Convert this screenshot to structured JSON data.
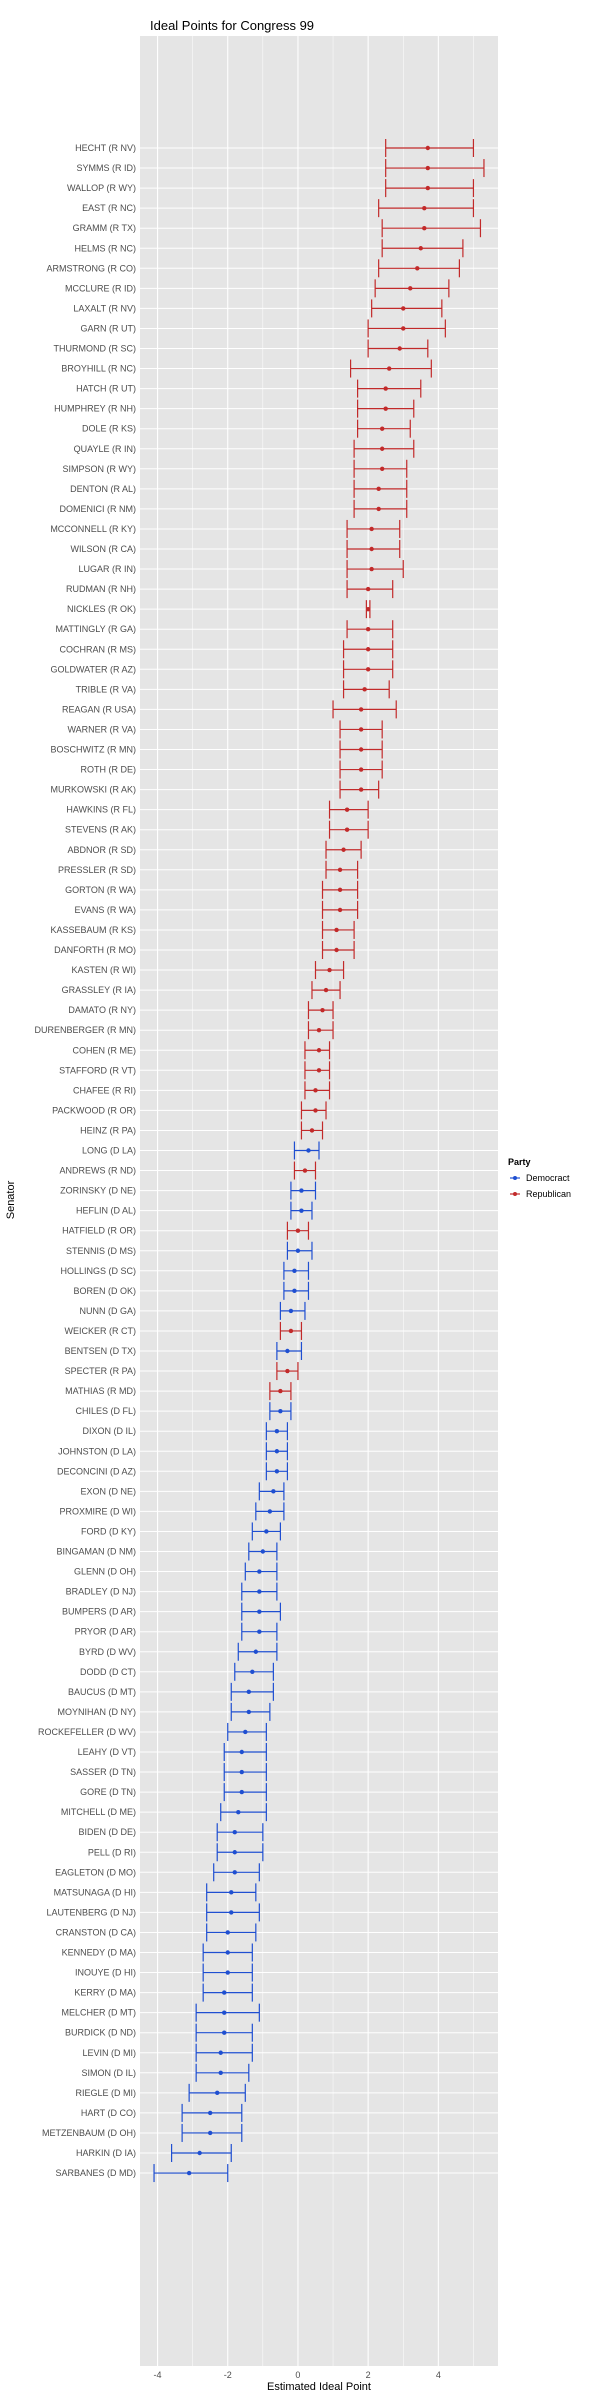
{
  "chart_data": {
    "type": "scatter",
    "title": "Ideal Points for Congress 99",
    "xlabel": "Estimated Ideal Point",
    "ylabel": "Senator",
    "xlim": [
      -4.5,
      5.7
    ],
    "xticks": [
      -4,
      -2,
      0,
      2,
      4
    ],
    "grid": true,
    "legend": {
      "title": "Party",
      "position": "right",
      "entries": [
        {
          "name": "Democract",
          "color": "#1f4fd1"
        },
        {
          "name": "Republican",
          "color": "#c22a2a"
        }
      ]
    },
    "colors": {
      "Democract": "#1f4fd1",
      "Republican": "#c22a2a"
    },
    "senators": [
      {
        "name": "HECHT (R NV)",
        "party": "Republican",
        "x": 3.7,
        "lo": 2.5,
        "hi": 5.0
      },
      {
        "name": "SYMMS (R ID)",
        "party": "Republican",
        "x": 3.7,
        "lo": 2.5,
        "hi": 5.3
      },
      {
        "name": "WALLOP (R WY)",
        "party": "Republican",
        "x": 3.7,
        "lo": 2.5,
        "hi": 5.0
      },
      {
        "name": "EAST (R NC)",
        "party": "Republican",
        "x": 3.6,
        "lo": 2.3,
        "hi": 5.0
      },
      {
        "name": "GRAMM (R TX)",
        "party": "Republican",
        "x": 3.6,
        "lo": 2.4,
        "hi": 5.2
      },
      {
        "name": "HELMS (R NC)",
        "party": "Republican",
        "x": 3.5,
        "lo": 2.4,
        "hi": 4.7
      },
      {
        "name": "ARMSTRONG (R CO)",
        "party": "Republican",
        "x": 3.4,
        "lo": 2.3,
        "hi": 4.6
      },
      {
        "name": "MCCLURE (R ID)",
        "party": "Republican",
        "x": 3.2,
        "lo": 2.2,
        "hi": 4.3
      },
      {
        "name": "LAXALT (R NV)",
        "party": "Republican",
        "x": 3.0,
        "lo": 2.1,
        "hi": 4.1
      },
      {
        "name": "GARN (R UT)",
        "party": "Republican",
        "x": 3.0,
        "lo": 2.0,
        "hi": 4.2
      },
      {
        "name": "THURMOND (R SC)",
        "party": "Republican",
        "x": 2.9,
        "lo": 2.0,
        "hi": 3.7
      },
      {
        "name": "BROYHILL (R NC)",
        "party": "Republican",
        "x": 2.6,
        "lo": 1.5,
        "hi": 3.8
      },
      {
        "name": "HATCH (R UT)",
        "party": "Republican",
        "x": 2.5,
        "lo": 1.7,
        "hi": 3.5
      },
      {
        "name": "HUMPHREY (R NH)",
        "party": "Republican",
        "x": 2.5,
        "lo": 1.7,
        "hi": 3.3
      },
      {
        "name": "DOLE (R KS)",
        "party": "Republican",
        "x": 2.4,
        "lo": 1.7,
        "hi": 3.2
      },
      {
        "name": "QUAYLE (R IN)",
        "party": "Republican",
        "x": 2.4,
        "lo": 1.6,
        "hi": 3.3
      },
      {
        "name": "SIMPSON (R WY)",
        "party": "Republican",
        "x": 2.4,
        "lo": 1.6,
        "hi": 3.1
      },
      {
        "name": "DENTON (R AL)",
        "party": "Republican",
        "x": 2.3,
        "lo": 1.6,
        "hi": 3.1
      },
      {
        "name": "DOMENICI (R NM)",
        "party": "Republican",
        "x": 2.3,
        "lo": 1.6,
        "hi": 3.1
      },
      {
        "name": "MCCONNELL (R KY)",
        "party": "Republican",
        "x": 2.1,
        "lo": 1.4,
        "hi": 2.9
      },
      {
        "name": "WILSON (R CA)",
        "party": "Republican",
        "x": 2.1,
        "lo": 1.4,
        "hi": 2.9
      },
      {
        "name": "LUGAR (R IN)",
        "party": "Republican",
        "x": 2.1,
        "lo": 1.4,
        "hi": 3.0
      },
      {
        "name": "RUDMAN (R NH)",
        "party": "Republican",
        "x": 2.0,
        "lo": 1.4,
        "hi": 2.7
      },
      {
        "name": "NICKLES (R OK)",
        "party": "Republican",
        "x": 2.0,
        "lo": 1.95,
        "hi": 2.05
      },
      {
        "name": "MATTINGLY (R GA)",
        "party": "Republican",
        "x": 2.0,
        "lo": 1.4,
        "hi": 2.7
      },
      {
        "name": "COCHRAN (R MS)",
        "party": "Republican",
        "x": 2.0,
        "lo": 1.3,
        "hi": 2.7
      },
      {
        "name": "GOLDWATER (R AZ)",
        "party": "Republican",
        "x": 2.0,
        "lo": 1.3,
        "hi": 2.7
      },
      {
        "name": "TRIBLE (R VA)",
        "party": "Republican",
        "x": 1.9,
        "lo": 1.3,
        "hi": 2.6
      },
      {
        "name": "REAGAN (R USA)",
        "party": "Republican",
        "x": 1.8,
        "lo": 1.0,
        "hi": 2.8
      },
      {
        "name": "WARNER (R VA)",
        "party": "Republican",
        "x": 1.8,
        "lo": 1.2,
        "hi": 2.4
      },
      {
        "name": "BOSCHWITZ (R MN)",
        "party": "Republican",
        "x": 1.8,
        "lo": 1.2,
        "hi": 2.4
      },
      {
        "name": "ROTH (R DE)",
        "party": "Republican",
        "x": 1.8,
        "lo": 1.2,
        "hi": 2.4
      },
      {
        "name": "MURKOWSKI (R AK)",
        "party": "Republican",
        "x": 1.8,
        "lo": 1.2,
        "hi": 2.3
      },
      {
        "name": "HAWKINS (R FL)",
        "party": "Republican",
        "x": 1.4,
        "lo": 0.9,
        "hi": 2.0
      },
      {
        "name": "STEVENS (R AK)",
        "party": "Republican",
        "x": 1.4,
        "lo": 0.9,
        "hi": 2.0
      },
      {
        "name": "ABDNOR (R SD)",
        "party": "Republican",
        "x": 1.3,
        "lo": 0.8,
        "hi": 1.8
      },
      {
        "name": "PRESSLER (R SD)",
        "party": "Republican",
        "x": 1.2,
        "lo": 0.8,
        "hi": 1.7
      },
      {
        "name": "GORTON (R WA)",
        "party": "Republican",
        "x": 1.2,
        "lo": 0.7,
        "hi": 1.7
      },
      {
        "name": "EVANS (R WA)",
        "party": "Republican",
        "x": 1.2,
        "lo": 0.7,
        "hi": 1.7
      },
      {
        "name": "KASSEBAUM (R KS)",
        "party": "Republican",
        "x": 1.1,
        "lo": 0.7,
        "hi": 1.6
      },
      {
        "name": "DANFORTH (R MO)",
        "party": "Republican",
        "x": 1.1,
        "lo": 0.7,
        "hi": 1.6
      },
      {
        "name": "KASTEN (R WI)",
        "party": "Republican",
        "x": 0.9,
        "lo": 0.5,
        "hi": 1.3
      },
      {
        "name": "GRASSLEY (R IA)",
        "party": "Republican",
        "x": 0.8,
        "lo": 0.4,
        "hi": 1.2
      },
      {
        "name": "DAMATO (R NY)",
        "party": "Republican",
        "x": 0.7,
        "lo": 0.3,
        "hi": 1.0
      },
      {
        "name": "DURENBERGER (R MN)",
        "party": "Republican",
        "x": 0.6,
        "lo": 0.3,
        "hi": 1.0
      },
      {
        "name": "COHEN (R ME)",
        "party": "Republican",
        "x": 0.6,
        "lo": 0.2,
        "hi": 0.9
      },
      {
        "name": "STAFFORD (R VT)",
        "party": "Republican",
        "x": 0.6,
        "lo": 0.2,
        "hi": 0.9
      },
      {
        "name": "CHAFEE (R RI)",
        "party": "Republican",
        "x": 0.5,
        "lo": 0.2,
        "hi": 0.9
      },
      {
        "name": "PACKWOOD (R OR)",
        "party": "Republican",
        "x": 0.5,
        "lo": 0.1,
        "hi": 0.8
      },
      {
        "name": "HEINZ (R PA)",
        "party": "Republican",
        "x": 0.4,
        "lo": 0.1,
        "hi": 0.7
      },
      {
        "name": "LONG (D LA)",
        "party": "Democract",
        "x": 0.3,
        "lo": -0.1,
        "hi": 0.6
      },
      {
        "name": "ANDREWS (R ND)",
        "party": "Republican",
        "x": 0.2,
        "lo": -0.1,
        "hi": 0.5
      },
      {
        "name": "ZORINSKY (D NE)",
        "party": "Democract",
        "x": 0.1,
        "lo": -0.2,
        "hi": 0.5
      },
      {
        "name": "HEFLIN (D AL)",
        "party": "Democract",
        "x": 0.1,
        "lo": -0.2,
        "hi": 0.4
      },
      {
        "name": "HATFIELD (R OR)",
        "party": "Republican",
        "x": 0.0,
        "lo": -0.3,
        "hi": 0.3
      },
      {
        "name": "STENNIS (D MS)",
        "party": "Democract",
        "x": 0.0,
        "lo": -0.3,
        "hi": 0.4
      },
      {
        "name": "HOLLINGS (D SC)",
        "party": "Democract",
        "x": -0.1,
        "lo": -0.4,
        "hi": 0.3
      },
      {
        "name": "BOREN (D OK)",
        "party": "Democract",
        "x": -0.1,
        "lo": -0.4,
        "hi": 0.3
      },
      {
        "name": "NUNN (D GA)",
        "party": "Democract",
        "x": -0.2,
        "lo": -0.5,
        "hi": 0.2
      },
      {
        "name": "WEICKER (R CT)",
        "party": "Republican",
        "x": -0.2,
        "lo": -0.5,
        "hi": 0.1
      },
      {
        "name": "BENTSEN (D TX)",
        "party": "Democract",
        "x": -0.3,
        "lo": -0.6,
        "hi": 0.1
      },
      {
        "name": "SPECTER (R PA)",
        "party": "Republican",
        "x": -0.3,
        "lo": -0.6,
        "hi": 0.0
      },
      {
        "name": "MATHIAS (R MD)",
        "party": "Republican",
        "x": -0.5,
        "lo": -0.8,
        "hi": -0.2
      },
      {
        "name": "CHILES (D FL)",
        "party": "Democract",
        "x": -0.5,
        "lo": -0.8,
        "hi": -0.2
      },
      {
        "name": "DIXON (D IL)",
        "party": "Democract",
        "x": -0.6,
        "lo": -0.9,
        "hi": -0.3
      },
      {
        "name": "JOHNSTON (D LA)",
        "party": "Democract",
        "x": -0.6,
        "lo": -0.9,
        "hi": -0.3
      },
      {
        "name": "DECONCINI (D AZ)",
        "party": "Democract",
        "x": -0.6,
        "lo": -0.9,
        "hi": -0.3
      },
      {
        "name": "EXON (D NE)",
        "party": "Democract",
        "x": -0.7,
        "lo": -1.1,
        "hi": -0.4
      },
      {
        "name": "PROXMIRE (D WI)",
        "party": "Democract",
        "x": -0.8,
        "lo": -1.2,
        "hi": -0.4
      },
      {
        "name": "FORD (D KY)",
        "party": "Democract",
        "x": -0.9,
        "lo": -1.3,
        "hi": -0.5
      },
      {
        "name": "BINGAMAN (D NM)",
        "party": "Democract",
        "x": -1.0,
        "lo": -1.4,
        "hi": -0.6
      },
      {
        "name": "GLENN (D OH)",
        "party": "Democract",
        "x": -1.1,
        "lo": -1.5,
        "hi": -0.6
      },
      {
        "name": "BRADLEY (D NJ)",
        "party": "Democract",
        "x": -1.1,
        "lo": -1.6,
        "hi": -0.6
      },
      {
        "name": "BUMPERS (D AR)",
        "party": "Democract",
        "x": -1.1,
        "lo": -1.6,
        "hi": -0.5
      },
      {
        "name": "PRYOR (D AR)",
        "party": "Democract",
        "x": -1.1,
        "lo": -1.6,
        "hi": -0.6
      },
      {
        "name": "BYRD (D WV)",
        "party": "Democract",
        "x": -1.2,
        "lo": -1.7,
        "hi": -0.6
      },
      {
        "name": "DODD (D CT)",
        "party": "Democract",
        "x": -1.3,
        "lo": -1.8,
        "hi": -0.7
      },
      {
        "name": "BAUCUS (D MT)",
        "party": "Democract",
        "x": -1.4,
        "lo": -1.9,
        "hi": -0.7
      },
      {
        "name": "MOYNIHAN (D NY)",
        "party": "Democract",
        "x": -1.4,
        "lo": -1.9,
        "hi": -0.8
      },
      {
        "name": "ROCKEFELLER (D WV)",
        "party": "Democract",
        "x": -1.5,
        "lo": -2.0,
        "hi": -0.9
      },
      {
        "name": "LEAHY (D VT)",
        "party": "Democract",
        "x": -1.6,
        "lo": -2.1,
        "hi": -0.9
      },
      {
        "name": "SASSER (D TN)",
        "party": "Democract",
        "x": -1.6,
        "lo": -2.1,
        "hi": -0.9
      },
      {
        "name": "GORE (D TN)",
        "party": "Democract",
        "x": -1.6,
        "lo": -2.1,
        "hi": -0.9
      },
      {
        "name": "MITCHELL (D ME)",
        "party": "Democract",
        "x": -1.7,
        "lo": -2.2,
        "hi": -0.9
      },
      {
        "name": "BIDEN (D DE)",
        "party": "Democract",
        "x": -1.8,
        "lo": -2.3,
        "hi": -1.0
      },
      {
        "name": "PELL (D RI)",
        "party": "Democract",
        "x": -1.8,
        "lo": -2.3,
        "hi": -1.0
      },
      {
        "name": "EAGLETON (D MO)",
        "party": "Democract",
        "x": -1.8,
        "lo": -2.4,
        "hi": -1.1
      },
      {
        "name": "MATSUNAGA (D HI)",
        "party": "Democract",
        "x": -1.9,
        "lo": -2.6,
        "hi": -1.2
      },
      {
        "name": "LAUTENBERG (D NJ)",
        "party": "Democract",
        "x": -1.9,
        "lo": -2.6,
        "hi": -1.1
      },
      {
        "name": "CRANSTON (D CA)",
        "party": "Democract",
        "x": -2.0,
        "lo": -2.6,
        "hi": -1.2
      },
      {
        "name": "KENNEDY (D MA)",
        "party": "Democract",
        "x": -2.0,
        "lo": -2.7,
        "hi": -1.3
      },
      {
        "name": "INOUYE (D HI)",
        "party": "Democract",
        "x": -2.0,
        "lo": -2.7,
        "hi": -1.3
      },
      {
        "name": "KERRY (D MA)",
        "party": "Democract",
        "x": -2.1,
        "lo": -2.7,
        "hi": -1.3
      },
      {
        "name": "MELCHER (D MT)",
        "party": "Democract",
        "x": -2.1,
        "lo": -2.9,
        "hi": -1.1
      },
      {
        "name": "BURDICK (D ND)",
        "party": "Democract",
        "x": -2.1,
        "lo": -2.9,
        "hi": -1.3
      },
      {
        "name": "LEVIN (D MI)",
        "party": "Democract",
        "x": -2.2,
        "lo": -2.9,
        "hi": -1.3
      },
      {
        "name": "SIMON (D IL)",
        "party": "Democract",
        "x": -2.2,
        "lo": -2.9,
        "hi": -1.4
      },
      {
        "name": "RIEGLE (D MI)",
        "party": "Democract",
        "x": -2.3,
        "lo": -3.1,
        "hi": -1.5
      },
      {
        "name": "HART (D CO)",
        "party": "Democract",
        "x": -2.5,
        "lo": -3.3,
        "hi": -1.6
      },
      {
        "name": "METZENBAUM (D OH)",
        "party": "Democract",
        "x": -2.5,
        "lo": -3.3,
        "hi": -1.6
      },
      {
        "name": "HARKIN (D IA)",
        "party": "Democract",
        "x": -2.8,
        "lo": -3.6,
        "hi": -1.9
      },
      {
        "name": "SARBANES (D MD)",
        "party": "Democract",
        "x": -3.1,
        "lo": -4.1,
        "hi": -2.0
      }
    ]
  }
}
